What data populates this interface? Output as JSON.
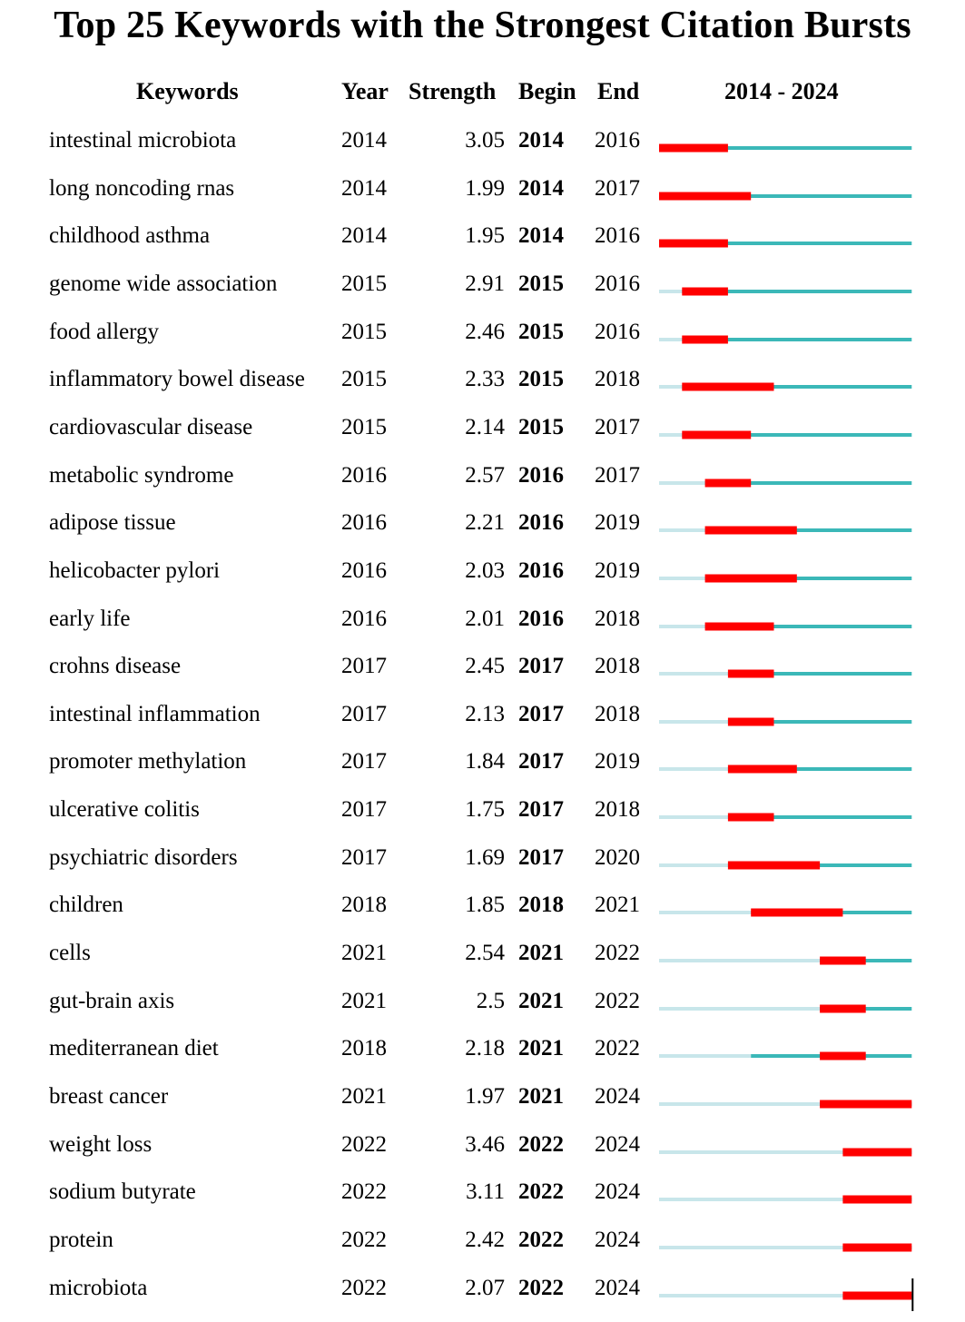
{
  "title": "Top 25 Keywords with the Strongest Citation Bursts",
  "headers": {
    "keywords": "Keywords",
    "year": "Year",
    "strength": "Strength",
    "begin": "Begin",
    "end": "End",
    "range": "2014 - 2024"
  },
  "colors": {
    "burst": "#ff0000",
    "active": "#3bb8b8",
    "inactive": "#c8e6ea"
  },
  "chart_data": {
    "type": "table",
    "time_range": [
      2014,
      2024
    ],
    "rows": [
      {
        "keyword": "intestinal microbiota",
        "year": "2014",
        "strength": "3.05",
        "begin": "2014",
        "end": "2016"
      },
      {
        "keyword": "long noncoding rnas",
        "year": "2014",
        "strength": "1.99",
        "begin": "2014",
        "end": "2017"
      },
      {
        "keyword": "childhood asthma",
        "year": "2014",
        "strength": "1.95",
        "begin": "2014",
        "end": "2016"
      },
      {
        "keyword": "genome wide association",
        "year": "2015",
        "strength": "2.91",
        "begin": "2015",
        "end": "2016"
      },
      {
        "keyword": "food allergy",
        "year": "2015",
        "strength": "2.46",
        "begin": "2015",
        "end": "2016"
      },
      {
        "keyword": "inflammatory bowel disease",
        "year": "2015",
        "strength": "2.33",
        "begin": "2015",
        "end": "2018"
      },
      {
        "keyword": "cardiovascular disease",
        "year": "2015",
        "strength": "2.14",
        "begin": "2015",
        "end": "2017"
      },
      {
        "keyword": "metabolic syndrome",
        "year": "2016",
        "strength": "2.57",
        "begin": "2016",
        "end": "2017"
      },
      {
        "keyword": "adipose tissue",
        "year": "2016",
        "strength": "2.21",
        "begin": "2016",
        "end": "2019"
      },
      {
        "keyword": "helicobacter pylori",
        "year": "2016",
        "strength": "2.03",
        "begin": "2016",
        "end": "2019"
      },
      {
        "keyword": "early life",
        "year": "2016",
        "strength": "2.01",
        "begin": "2016",
        "end": "2018"
      },
      {
        "keyword": "crohns disease",
        "year": "2017",
        "strength": "2.45",
        "begin": "2017",
        "end": "2018"
      },
      {
        "keyword": "intestinal inflammation",
        "year": "2017",
        "strength": "2.13",
        "begin": "2017",
        "end": "2018"
      },
      {
        "keyword": "promoter methylation",
        "year": "2017",
        "strength": "1.84",
        "begin": "2017",
        "end": "2019"
      },
      {
        "keyword": "ulcerative colitis",
        "year": "2017",
        "strength": "1.75",
        "begin": "2017",
        "end": "2018"
      },
      {
        "keyword": "psychiatric disorders",
        "year": "2017",
        "strength": "1.69",
        "begin": "2017",
        "end": "2020"
      },
      {
        "keyword": "children",
        "year": "2018",
        "strength": "1.85",
        "begin": "2018",
        "end": "2021"
      },
      {
        "keyword": "cells",
        "year": "2021",
        "strength": "2.54",
        "begin": "2021",
        "end": "2022"
      },
      {
        "keyword": "gut-brain axis",
        "year": "2021",
        "strength": "2.5",
        "begin": "2021",
        "end": "2022"
      },
      {
        "keyword": "mediterranean diet",
        "year": "2018",
        "strength": "2.18",
        "begin": "2021",
        "end": "2022"
      },
      {
        "keyword": "breast cancer",
        "year": "2021",
        "strength": "1.97",
        "begin": "2021",
        "end": "2024"
      },
      {
        "keyword": "weight loss",
        "year": "2022",
        "strength": "3.46",
        "begin": "2022",
        "end": "2024"
      },
      {
        "keyword": "sodium butyrate",
        "year": "2022",
        "strength": "3.11",
        "begin": "2022",
        "end": "2024"
      },
      {
        "keyword": "protein",
        "year": "2022",
        "strength": "2.42",
        "begin": "2022",
        "end": "2024"
      },
      {
        "keyword": "microbiota",
        "year": "2022",
        "strength": "2.07",
        "begin": "2022",
        "end": "2024"
      }
    ]
  }
}
